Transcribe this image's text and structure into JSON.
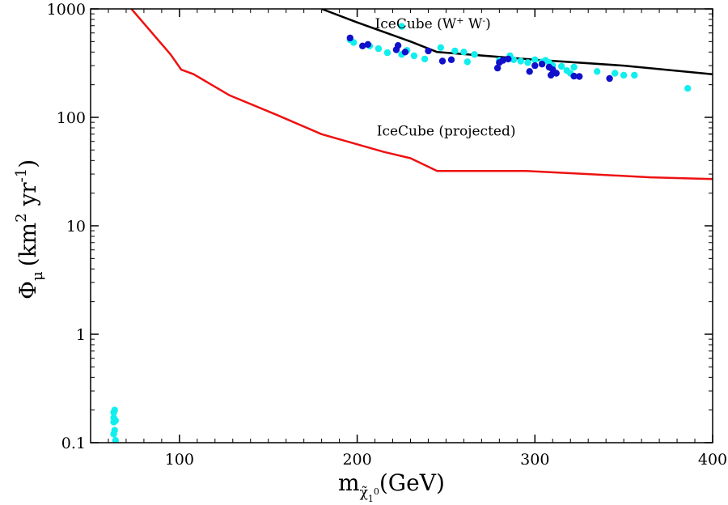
{
  "chart_data": {
    "type": "scatter",
    "xlabel": {
      "main": "m",
      "subscript": "χ̃",
      "sub_sub": "1",
      "sub_sup": "0",
      "unit": "(GeV)"
    },
    "ylabel": {
      "main": "Φ",
      "subscript": "μ",
      "unit_open": "(km",
      "sup1": "2",
      "mid": " yr",
      "sup2": "-1",
      "unit_close": ")"
    },
    "xlim": [
      50,
      400
    ],
    "ylim": [
      0.1,
      1000
    ],
    "yscale": "log",
    "grid": false,
    "x_ticks": [
      {
        "value": 100,
        "label": "100"
      },
      {
        "value": 200,
        "label": "200"
      },
      {
        "value": 300,
        "label": "300"
      },
      {
        "value": 400,
        "label": "400"
      }
    ],
    "y_ticks": [
      {
        "value": 0.1,
        "label": "0.1"
      },
      {
        "value": 1,
        "label": "1"
      },
      {
        "value": 10,
        "label": "10"
      },
      {
        "value": 100,
        "label": "100"
      },
      {
        "value": 1000,
        "label": "1000"
      }
    ],
    "annotations": [
      {
        "id": "ww",
        "x": 210,
        "y": 660,
        "text": "IceCube (W",
        "sup1": "+",
        "mid": " W",
        "sup2": "-",
        "end": ")"
      },
      {
        "id": "proj",
        "x": 211,
        "y": 68,
        "text": "IceCube (projected)"
      }
    ],
    "lines": [
      {
        "name": "IceCube (W+ W-)",
        "color": "#000000",
        "points": [
          [
            180,
            1000
          ],
          [
            200,
            750
          ],
          [
            230,
            500
          ],
          [
            245,
            400
          ],
          [
            300,
            340
          ],
          [
            350,
            300
          ],
          [
            400,
            250
          ]
        ]
      },
      {
        "name": "IceCube (projected)",
        "color": "#ee1111",
        "points": [
          [
            73,
            1000
          ],
          [
            95,
            380
          ],
          [
            101,
            275
          ],
          [
            108,
            250
          ],
          [
            128,
            160
          ],
          [
            155,
            105
          ],
          [
            180,
            70
          ],
          [
            215,
            48
          ],
          [
            230,
            42
          ],
          [
            245,
            32
          ],
          [
            295,
            32
          ],
          [
            330,
            30
          ],
          [
            365,
            28
          ],
          [
            400,
            27
          ]
        ]
      }
    ],
    "series": [
      {
        "name": "cyan points",
        "color": "#11eeee",
        "points": [
          [
            63,
            0.19
          ],
          [
            63.5,
            0.2
          ],
          [
            63,
            0.17
          ],
          [
            64,
            0.16
          ],
          [
            63,
            0.155
          ],
          [
            63.5,
            0.13
          ],
          [
            63,
            0.12
          ],
          [
            64,
            0.105
          ],
          [
            196,
            520
          ],
          [
            198,
            490
          ],
          [
            207,
            455
          ],
          [
            212,
            430
          ],
          [
            217,
            395
          ],
          [
            225,
            690
          ],
          [
            225,
            380
          ],
          [
            228,
            415
          ],
          [
            232,
            370
          ],
          [
            238,
            345
          ],
          [
            247,
            440
          ],
          [
            255,
            410
          ],
          [
            260,
            400
          ],
          [
            262,
            325
          ],
          [
            266,
            380
          ],
          [
            280,
            335
          ],
          [
            286,
            370
          ],
          [
            288,
            340
          ],
          [
            292,
            330
          ],
          [
            296,
            320
          ],
          [
            300,
            340
          ],
          [
            304,
            325
          ],
          [
            306,
            335
          ],
          [
            308,
            320
          ],
          [
            310,
            300
          ],
          [
            315,
            295
          ],
          [
            318,
            270
          ],
          [
            320,
            255
          ],
          [
            322,
            290
          ],
          [
            335,
            265
          ],
          [
            345,
            255
          ],
          [
            350,
            245
          ],
          [
            356,
            245
          ],
          [
            386,
            185
          ]
        ]
      },
      {
        "name": "blue points",
        "color": "#1111cc",
        "points": [
          [
            196,
            540
          ],
          [
            203,
            455
          ],
          [
            206,
            470
          ],
          [
            222,
            420
          ],
          [
            223,
            460
          ],
          [
            227,
            400
          ],
          [
            240,
            410
          ],
          [
            248,
            330
          ],
          [
            253,
            340
          ],
          [
            279,
            285
          ],
          [
            280,
            320
          ],
          [
            282,
            335
          ],
          [
            285,
            345
          ],
          [
            297,
            265
          ],
          [
            300,
            300
          ],
          [
            304,
            310
          ],
          [
            308,
            290
          ],
          [
            309,
            245
          ],
          [
            310,
            275
          ],
          [
            312,
            255
          ],
          [
            322,
            240
          ],
          [
            325,
            238
          ],
          [
            342,
            228
          ]
        ]
      }
    ]
  }
}
